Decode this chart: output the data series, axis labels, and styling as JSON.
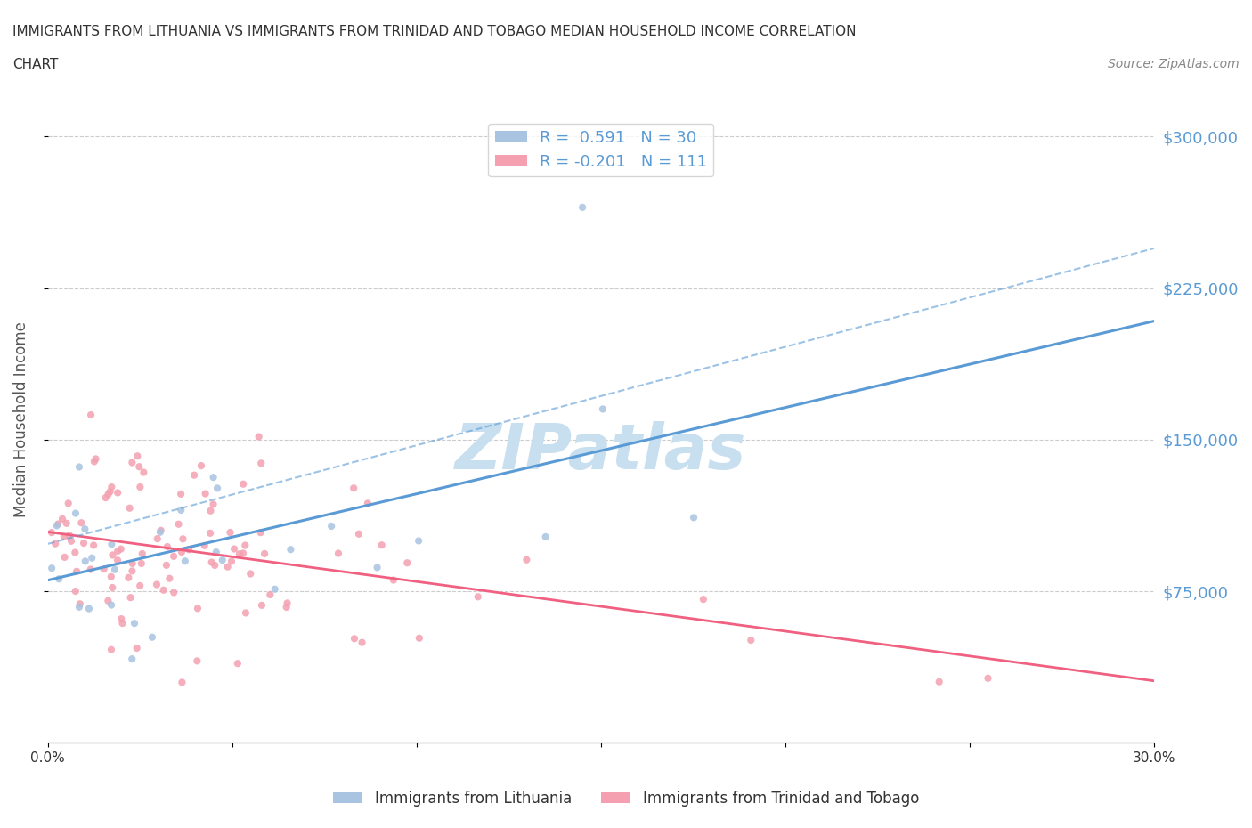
{
  "title_line1": "IMMIGRANTS FROM LITHUANIA VS IMMIGRANTS FROM TRINIDAD AND TOBAGO MEDIAN HOUSEHOLD INCOME CORRELATION",
  "title_line2": "CHART",
  "source": "Source: ZipAtlas.com",
  "xlabel": "",
  "ylabel": "Median Household Income",
  "yticks": [
    0,
    75000,
    150000,
    225000,
    300000
  ],
  "ytick_labels": [
    "",
    "$75,000",
    "$150,000",
    "$225,000",
    "$300,000"
  ],
  "xlim": [
    0.0,
    0.3
  ],
  "ylim": [
    0,
    320000
  ],
  "xticks": [
    0.0,
    0.05,
    0.1,
    0.15,
    0.2,
    0.25,
    0.3
  ],
  "xtick_labels": [
    "0.0%",
    "",
    "",
    "",
    "",
    "",
    "30.0%"
  ],
  "color_lithuania": "#a8c4e0",
  "color_trinidad": "#f4a0b0",
  "line_color_lithuania": "#5b9bd5",
  "line_color_trinidad": "#f06080",
  "R_lithuania": 0.591,
  "N_lithuania": 30,
  "R_trinidad": -0.201,
  "N_trinidad": 111,
  "watermark": "ZIPatlas",
  "watermark_color": "#c8dff0",
  "legend_label_lithuania": "Immigrants from Lithuania",
  "legend_label_trinidad": "Immigrants from Trinidad and Tobago",
  "background_color": "#ffffff",
  "scatter_alpha": 0.85,
  "scatter_size": 35,
  "seed_lithuania": 42,
  "seed_trinidad": 123
}
